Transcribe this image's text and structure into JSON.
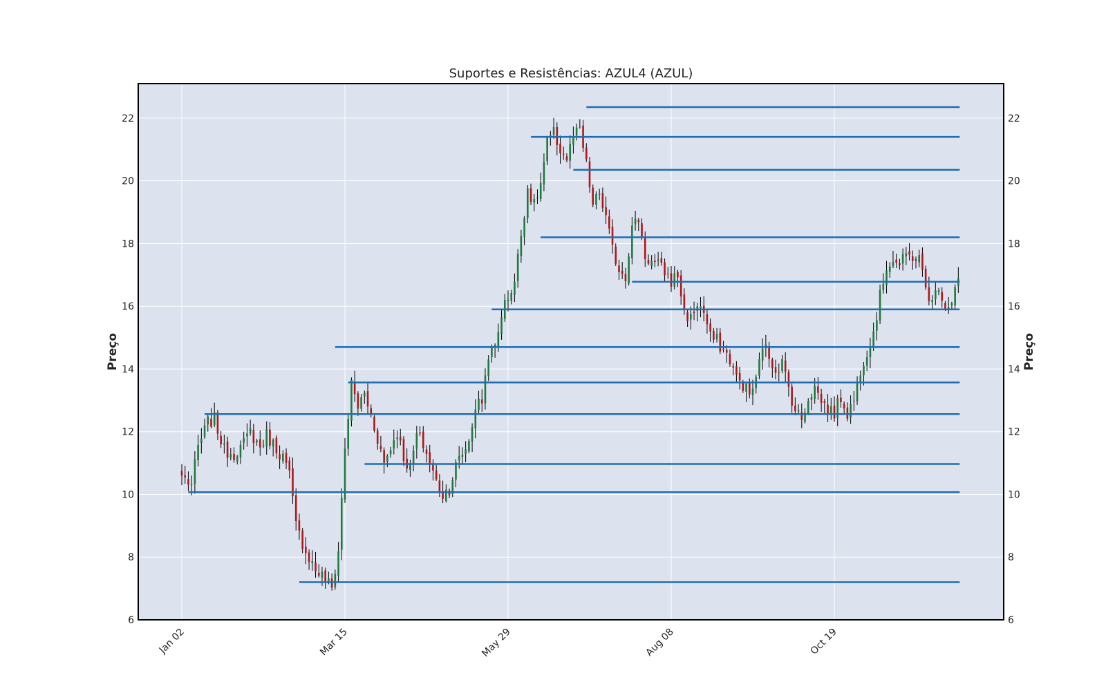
{
  "chart_data": {
    "type": "candlestick",
    "title": "Suportes e Resistências: AZUL4 (AZUL)",
    "ylabel_left": "Preço",
    "ylabel_right": "Preço",
    "xlabel": "",
    "ylim": [
      6,
      23.1
    ],
    "yticks": [
      6,
      8,
      10,
      12,
      14,
      16,
      18,
      20,
      22
    ],
    "x_tick_labels": [
      "Jan 02",
      "Mar 15",
      "May 29",
      "Aug 08",
      "Oct 19"
    ],
    "x_tick_index": [
      0,
      50,
      100,
      150,
      200
    ],
    "n_periods": 239,
    "grid": true,
    "colors": {
      "up": "#1e7b3c",
      "down": "#b01717",
      "wick": "#000000",
      "level": "#1f6db3",
      "plot_bg": "#dde2ef",
      "grid": "#ffffff"
    },
    "close_anchors": [
      [
        0,
        10.6
      ],
      [
        3,
        10.3
      ],
      [
        5,
        11.5
      ],
      [
        8,
        12.3
      ],
      [
        10,
        12.4
      ],
      [
        13,
        11.4
      ],
      [
        16,
        11.3
      ],
      [
        19,
        11.6
      ],
      [
        21,
        12.0
      ],
      [
        24,
        11.5
      ],
      [
        26,
        11.9
      ],
      [
        28,
        11.6
      ],
      [
        31,
        11.2
      ],
      [
        33,
        10.6
      ],
      [
        35,
        9.0
      ],
      [
        38,
        8.2
      ],
      [
        41,
        7.6
      ],
      [
        44,
        7.3
      ],
      [
        46,
        7.0
      ],
      [
        48,
        8.2
      ],
      [
        50,
        11.5
      ],
      [
        52,
        13.5
      ],
      [
        54,
        12.8
      ],
      [
        56,
        13.2
      ],
      [
        58,
        12.5
      ],
      [
        60,
        11.8
      ],
      [
        62,
        11.0
      ],
      [
        64,
        11.5
      ],
      [
        66,
        12.0
      ],
      [
        68,
        11.2
      ],
      [
        70,
        10.8
      ],
      [
        72,
        11.9
      ],
      [
        74,
        11.6
      ],
      [
        76,
        11.0
      ],
      [
        78,
        10.4
      ],
      [
        80,
        10.0
      ],
      [
        82,
        10.2
      ],
      [
        84,
        10.9
      ],
      [
        86,
        11.3
      ],
      [
        88,
        11.7
      ],
      [
        90,
        12.8
      ],
      [
        92,
        13.0
      ],
      [
        94,
        14.5
      ],
      [
        96,
        14.6
      ],
      [
        98,
        15.8
      ],
      [
        100,
        16.3
      ],
      [
        102,
        16.8
      ],
      [
        104,
        18.3
      ],
      [
        106,
        19.8
      ],
      [
        108,
        19.2
      ],
      [
        110,
        19.9
      ],
      [
        112,
        21.2
      ],
      [
        114,
        21.5
      ],
      [
        116,
        21.0
      ],
      [
        118,
        20.7
      ],
      [
        120,
        21.4
      ],
      [
        122,
        21.6
      ],
      [
        124,
        20.5
      ],
      [
        126,
        19.2
      ],
      [
        128,
        19.6
      ],
      [
        130,
        18.8
      ],
      [
        132,
        17.8
      ],
      [
        134,
        17.2
      ],
      [
        136,
        17.0
      ],
      [
        138,
        18.5
      ],
      [
        140,
        18.8
      ],
      [
        142,
        17.6
      ],
      [
        144,
        17.4
      ],
      [
        146,
        17.3
      ],
      [
        148,
        17.1
      ],
      [
        150,
        16.8
      ],
      [
        152,
        17.0
      ],
      [
        154,
        15.8
      ],
      [
        156,
        15.6
      ],
      [
        158,
        16.1
      ],
      [
        160,
        15.8
      ],
      [
        162,
        15.0
      ],
      [
        164,
        14.9
      ],
      [
        166,
        14.6
      ],
      [
        168,
        14.3
      ],
      [
        170,
        13.7
      ],
      [
        172,
        13.5
      ],
      [
        174,
        13.2
      ],
      [
        176,
        13.6
      ],
      [
        178,
        14.8
      ],
      [
        180,
        14.4
      ],
      [
        182,
        14.0
      ],
      [
        184,
        14.2
      ],
      [
        186,
        13.4
      ],
      [
        188,
        12.7
      ],
      [
        190,
        12.4
      ],
      [
        192,
        13.1
      ],
      [
        194,
        13.4
      ],
      [
        196,
        13.0
      ],
      [
        198,
        12.7
      ],
      [
        200,
        12.6
      ],
      [
        202,
        13.1
      ],
      [
        204,
        12.6
      ],
      [
        206,
        13.0
      ],
      [
        208,
        14.0
      ],
      [
        210,
        14.6
      ],
      [
        212,
        15.2
      ],
      [
        214,
        16.3
      ],
      [
        216,
        17.3
      ],
      [
        218,
        17.5
      ],
      [
        220,
        17.3
      ],
      [
        222,
        17.6
      ],
      [
        224,
        17.6
      ],
      [
        226,
        17.5
      ],
      [
        228,
        16.6
      ],
      [
        230,
        16.1
      ],
      [
        232,
        16.7
      ],
      [
        234,
        16.0
      ],
      [
        236,
        16.2
      ],
      [
        238,
        16.9
      ]
    ],
    "support_resistance_levels": [
      {
        "price": 22.35,
        "start_index": 124
      },
      {
        "price": 21.4,
        "start_index": 107
      },
      {
        "price": 20.35,
        "start_index": 120
      },
      {
        "price": 18.2,
        "start_index": 110
      },
      {
        "price": 16.78,
        "start_index": 138
      },
      {
        "price": 15.9,
        "start_index": 95
      },
      {
        "price": 14.7,
        "start_index": 47
      },
      {
        "price": 13.57,
        "start_index": 51
      },
      {
        "price": 12.56,
        "start_index": 7
      },
      {
        "price": 10.97,
        "start_index": 56
      },
      {
        "price": 10.07,
        "start_index": 2
      },
      {
        "price": 7.2,
        "start_index": 36
      }
    ]
  }
}
